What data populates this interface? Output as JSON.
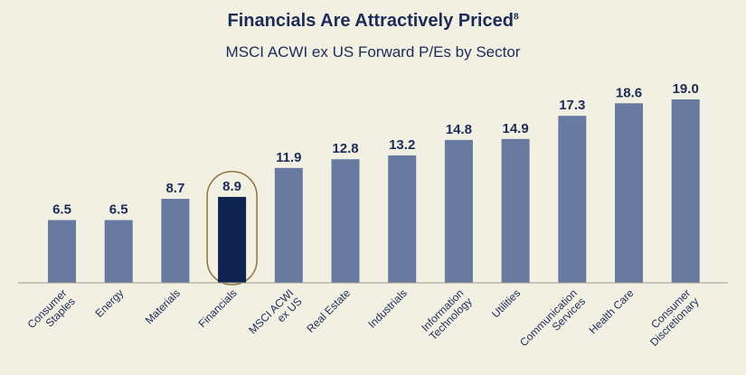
{
  "title": "Financials Are Attractively Priced",
  "title_superscript": "8",
  "subtitle": "MSCI ACWI ex US Forward P/Es by Sector",
  "colors": {
    "background": "#f2f0e3",
    "bar": "#687aa0",
    "highlight_bar": "#0f2350",
    "highlight_outline": "#8f7540",
    "text": "#1d2c57",
    "axis": "#9a9a8a"
  },
  "chart_data": {
    "type": "bar",
    "title": "Financials Are Attractively Priced",
    "subtitle": "MSCI ACWI ex US Forward P/Es by Sector",
    "xlabel": "",
    "ylabel": "",
    "ylim": [
      0,
      19.0
    ],
    "categories": [
      [
        "Consumer",
        "Staples"
      ],
      [
        "Energy"
      ],
      [
        "Materials"
      ],
      [
        "Financials"
      ],
      [
        "MSCI ACWI",
        "ex US"
      ],
      [
        "Real Estate"
      ],
      [
        "Industrials"
      ],
      [
        "Information",
        "Technology"
      ],
      [
        "Utilities"
      ],
      [
        "Communication",
        "Services"
      ],
      [
        "Health Care"
      ],
      [
        "Consumer",
        "Discretionary"
      ]
    ],
    "values": [
      6.5,
      6.5,
      8.7,
      8.9,
      11.9,
      12.8,
      13.2,
      14.8,
      14.9,
      17.3,
      18.6,
      19.0
    ],
    "value_labels": [
      "6.5",
      "6.5",
      "8.7",
      "8.9",
      "11.9",
      "12.8",
      "13.2",
      "14.8",
      "14.9",
      "17.3",
      "18.6",
      "19.0"
    ],
    "highlight_index": 3
  }
}
